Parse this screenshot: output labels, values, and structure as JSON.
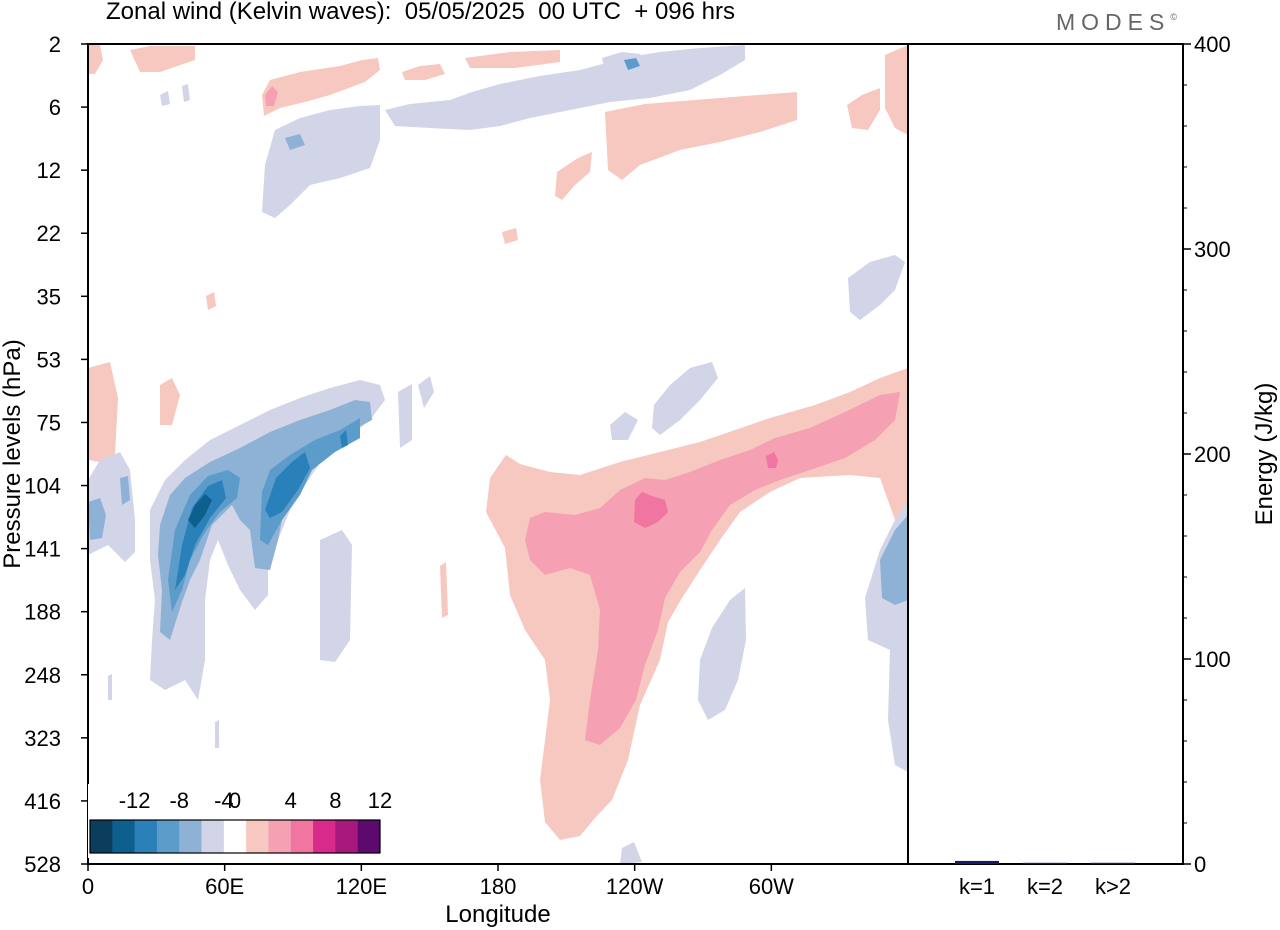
{
  "chart_data": [
    {
      "type": "heatmap",
      "title": "Zonal wind (Kelvin waves):  05/05/2025  00 UTC  + 096 hrs",
      "xlabel": "Longitude",
      "ylabel": "Pressure levels (hPa)",
      "x_ticks": [
        "0",
        "60E",
        "120E",
        "180",
        "120W",
        "60W"
      ],
      "y_ticks": [
        "2",
        "6",
        "12",
        "22",
        "35",
        "53",
        "75",
        "104",
        "141",
        "188",
        "248",
        "323",
        "416",
        "528"
      ],
      "y_scale": "log",
      "colorbar": {
        "tick_labels": [
          "-12",
          "-8",
          "-4",
          "0",
          "4",
          "8",
          "12"
        ],
        "levels": [
          -14,
          -12,
          -10,
          -8,
          -6,
          -4,
          -2,
          2,
          4,
          6,
          8,
          10,
          12,
          14
        ],
        "colors": [
          "#0a3e5c",
          "#0d5f8e",
          "#2a80b8",
          "#5b9ccb",
          "#8eb1d6",
          "#d2d4e8",
          "#ffffff",
          "#f7c8c0",
          "#f6a0b4",
          "#f075a0",
          "#d72a8a",
          "#a8187c",
          "#5c0a6e"
        ]
      },
      "features": [
        {
          "kind": "negative",
          "description": "tilted easterly band 30E–125E",
          "pressure_range_hPa": [
            60,
            300
          ],
          "min_value": -12
        },
        {
          "kind": "positive",
          "description": "westerly anomaly centred near 130W extending to surface",
          "pressure_range_hPa": [
            90,
            500
          ],
          "max_value": 8
        },
        {
          "kind": "positive",
          "description": "upper westerly streak 30E–60W",
          "pressure_range_hPa": [
            2,
            15
          ],
          "max_value": 6
        },
        {
          "kind": "negative",
          "description": "upper easterly streak 60E–80W",
          "pressure_range_hPa": [
            2,
            22
          ],
          "max_value": -6
        }
      ]
    },
    {
      "type": "bar",
      "categories": [
        "k=1",
        "k=2",
        "k>2"
      ],
      "values": [
        1.5,
        0.3,
        0.6
      ],
      "ylabel": "Energy (J/kg)",
      "ylim": [
        0,
        400
      ],
      "y_ticks": [
        "0",
        "100",
        "200",
        "300",
        "400"
      ],
      "bar_color": "#1a1a5e"
    }
  ],
  "branding": {
    "logo_text": "MODES",
    "logo_mark": "©"
  }
}
